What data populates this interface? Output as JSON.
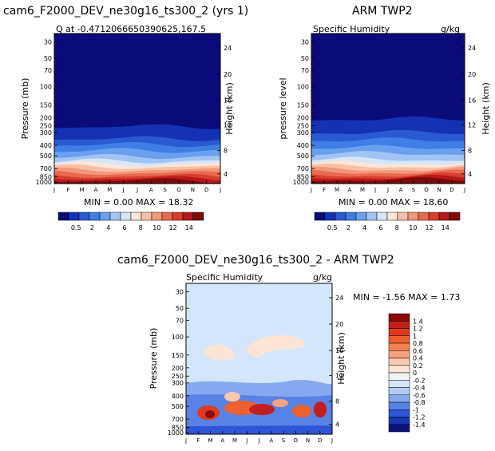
{
  "panels": [
    {
      "id": "model",
      "title": "cam6_F2000_DEV_ne30g16_ts300_2 (yrs 1)",
      "left_label": "Q at -0.4712066650390625,167.5",
      "right_label": "",
      "ylabel": "Pressure (mb)",
      "ylabel_right": "Height (km)",
      "minmax": "MIN =    0.00 MAX =   18.32"
    },
    {
      "id": "obs",
      "title": "ARM TWP2",
      "left_label": "Specific Humidity",
      "right_label": "g/kg",
      "ylabel": "pressure level",
      "ylabel_right": "Height (km)",
      "minmax": "MIN =    0.00 MAX =   18.60"
    },
    {
      "id": "diff",
      "title": "cam6_F2000_DEV_ne30g16_ts300_2 - ARM TWP2",
      "left_label": "Specific Humidity",
      "right_label": "g/kg",
      "ylabel": "Pressure (mb)",
      "ylabel_right": "Height (km)",
      "minmax": "MIN =  -1.56 MAX =    1.73"
    }
  ],
  "chart_data": [
    {
      "type": "heatmap",
      "panel": "model",
      "x": [
        "J",
        "F",
        "M",
        "A",
        "M",
        "J",
        "J",
        "A",
        "S",
        "O",
        "N",
        "D",
        "J"
      ],
      "y_pressure_ticks": [
        "30",
        "50",
        "70",
        "100",
        "150",
        "200",
        "250",
        "300",
        "400",
        "500",
        "700",
        "850",
        "1000"
      ],
      "y_height_ticks": [
        "24",
        "20",
        "16",
        "12",
        "8",
        "4"
      ],
      "units": "g/kg",
      "min": 0.0,
      "max": 18.32,
      "colorbar_labels": [
        "0.5",
        "2",
        "4",
        "6",
        "8",
        "10",
        "12",
        "14"
      ],
      "colors": [
        "#0b0b7c",
        "#1432b4",
        "#2a5ad2",
        "#3e7ee6",
        "#6aa0ee",
        "#a2c4f4",
        "#d6e6fa",
        "#fbe5d6",
        "#f8c0a6",
        "#f3977a",
        "#e86a50",
        "#d63e2c",
        "#b71818",
        "#7d0a0a"
      ]
    },
    {
      "type": "heatmap",
      "panel": "obs",
      "x": [
        "J",
        "F",
        "M",
        "A",
        "M",
        "J",
        "J",
        "A",
        "S",
        "O",
        "N",
        "D",
        "J"
      ],
      "y_pressure_ticks": [
        "30",
        "50",
        "70",
        "100",
        "150",
        "200",
        "250",
        "300",
        "400",
        "500",
        "700",
        "850",
        "1000"
      ],
      "y_height_ticks": [
        "24",
        "20",
        "16",
        "12",
        "8",
        "4"
      ],
      "units": "g/kg",
      "min": 0.0,
      "max": 18.6,
      "colorbar_labels": [
        "0.5",
        "2",
        "4",
        "6",
        "8",
        "10",
        "12",
        "14"
      ],
      "colors": [
        "#0b0b7c",
        "#1432b4",
        "#2a5ad2",
        "#3e7ee6",
        "#6aa0ee",
        "#a2c4f4",
        "#d6e6fa",
        "#fbe5d6",
        "#f8c0a6",
        "#f3977a",
        "#e86a50",
        "#d63e2c",
        "#b71818",
        "#7d0a0a"
      ]
    },
    {
      "type": "heatmap",
      "panel": "diff",
      "x": [
        "J",
        "F",
        "M",
        "A",
        "M",
        "J",
        "J",
        "A",
        "S",
        "O",
        "N",
        "D",
        "J"
      ],
      "y_pressure_ticks": [
        "30",
        "50",
        "70",
        "100",
        "150",
        "200",
        "250",
        "300",
        "400",
        "500",
        "700",
        "850",
        "1000"
      ],
      "y_height_ticks": [
        "24",
        "20",
        "16",
        "12",
        "8",
        "4"
      ],
      "units": "g/kg",
      "min": -1.56,
      "max": 1.73,
      "colorbar_labels": [
        "1.4",
        "1.2",
        "1",
        "0.8",
        "0.6",
        "0.4",
        "0.2",
        "0",
        "-0.2",
        "-0.4",
        "-0.6",
        "-0.8",
        "-1",
        "-1.2",
        "-1.4"
      ],
      "colors": [
        "#8b0a0a",
        "#c21e1e",
        "#e03a1c",
        "#f0602c",
        "#f3834e",
        "#f6a480",
        "#f9c9ae",
        "#fce4d4",
        "#f2f2f2",
        "#d5e6fb",
        "#b4cdf5",
        "#86a8ee",
        "#5882e6",
        "#2f55d8",
        "#1a34b4",
        "#0c137c"
      ]
    }
  ]
}
